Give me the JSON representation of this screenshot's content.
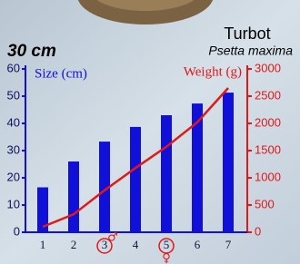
{
  "chart_data": {
    "type": "bar",
    "title": "Turbot",
    "subtitle": "Psetta maxima",
    "annotation": "30 cm",
    "categories": [
      "1",
      "2",
      "3",
      "4",
      "5",
      "6",
      "7"
    ],
    "series": [
      {
        "name": "Size (cm)",
        "type": "bar",
        "color": "#1010d8",
        "values": [
          16.5,
          26,
          33.3,
          38.7,
          43,
          47.3,
          51.3
        ]
      },
      {
        "name": "Weight (g)",
        "type": "line",
        "axis": "y2",
        "color": "#e01818",
        "values": [
          100,
          330,
          770,
          1180,
          1570,
          2020,
          2650
        ]
      }
    ],
    "markers": [
      "♂",
      "♀"
    ],
    "ylim": [
      0,
      60
    ],
    "yticks": [
      0,
      10,
      20,
      30,
      40,
      50,
      60
    ],
    "y2lim": [
      0,
      3000
    ],
    "y2ticks": [
      0,
      500,
      1000,
      1500,
      2000,
      2500,
      3000
    ]
  }
}
